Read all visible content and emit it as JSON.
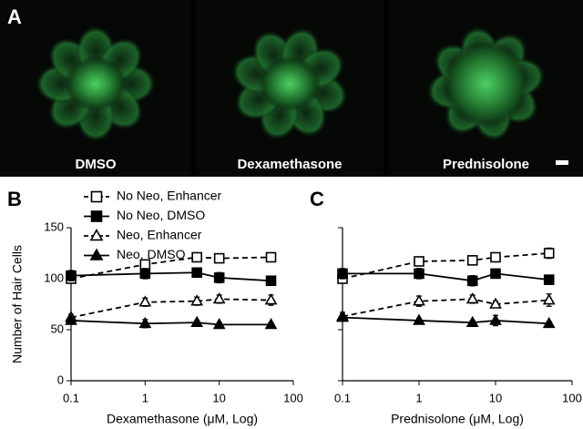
{
  "panel_a": {
    "label": "A",
    "images": [
      "DMSO",
      "Dexamethasone",
      "Prednisolone"
    ]
  },
  "chart_data": [
    {
      "type": "line",
      "panel_label": "B",
      "xlabel": "Dexamethasone (μM, Log)",
      "ylabel": "Number of Hair Cells",
      "x": [
        0.1,
        1,
        5,
        10,
        50
      ],
      "xlim": [
        0.1,
        100
      ],
      "xticks": [
        0.1,
        1,
        10,
        100
      ],
      "xscale": "log",
      "ylim": [
        0,
        150
      ],
      "yticks": [
        0,
        50,
        100,
        150
      ],
      "show_ytick_labels": true,
      "legend": "upper left",
      "series": [
        {
          "name": "No Neo, Enhancer",
          "color": "#000000",
          "marker": "square",
          "filled": false,
          "dashed": true,
          "values": [
            100,
            114,
            121,
            120,
            121
          ],
          "errors": [
            4,
            4,
            4,
            4,
            4
          ]
        },
        {
          "name": "No Neo, DMSO",
          "color": "#000000",
          "marker": "square",
          "filled": true,
          "dashed": false,
          "values": [
            103,
            105,
            106,
            101,
            98
          ],
          "errors": [
            5,
            5,
            4,
            5,
            3
          ]
        },
        {
          "name": "Neo, Enhancer",
          "color": "#000000",
          "marker": "triangle",
          "filled": false,
          "dashed": true,
          "values": [
            62,
            77,
            78,
            80,
            79
          ],
          "errors": [
            3,
            4,
            4,
            4,
            5
          ]
        },
        {
          "name": "Neo, DMSO",
          "color": "#000000",
          "marker": "triangle",
          "filled": true,
          "dashed": false,
          "values": [
            59,
            56,
            57,
            55,
            55
          ],
          "errors": [
            3,
            4,
            2,
            2,
            2
          ]
        }
      ]
    },
    {
      "type": "line",
      "panel_label": "C",
      "xlabel": "Prednisolone (μM, Log)",
      "x": [
        0.1,
        1,
        5,
        10,
        50
      ],
      "xlim": [
        0.1,
        100
      ],
      "xticks": [
        0.1,
        1,
        10,
        100
      ],
      "xscale": "log",
      "ylim": [
        0,
        150
      ],
      "yticks": [
        0,
        50,
        100,
        150
      ],
      "show_ytick_labels": false,
      "series": [
        {
          "name": "No Neo, Enhancer",
          "color": "#000000",
          "marker": "square",
          "filled": false,
          "dashed": true,
          "values": [
            100,
            117,
            118,
            121,
            125
          ],
          "errors": [
            4,
            3,
            3,
            4,
            5
          ]
        },
        {
          "name": "No Neo, DMSO",
          "color": "#000000",
          "marker": "square",
          "filled": true,
          "dashed": false,
          "values": [
            105,
            105,
            98,
            105,
            99
          ],
          "errors": [
            5,
            5,
            5,
            4,
            3
          ]
        },
        {
          "name": "Neo, Enhancer",
          "color": "#000000",
          "marker": "triangle",
          "filled": false,
          "dashed": true,
          "values": [
            63,
            78,
            80,
            75,
            79
          ],
          "errors": [
            4,
            5,
            4,
            3,
            6
          ]
        },
        {
          "name": "Neo, DMSO",
          "color": "#000000",
          "marker": "triangle",
          "filled": true,
          "dashed": false,
          "values": [
            62,
            59,
            57,
            59,
            56
          ],
          "errors": [
            3,
            2,
            2,
            5,
            2
          ]
        }
      ]
    }
  ]
}
